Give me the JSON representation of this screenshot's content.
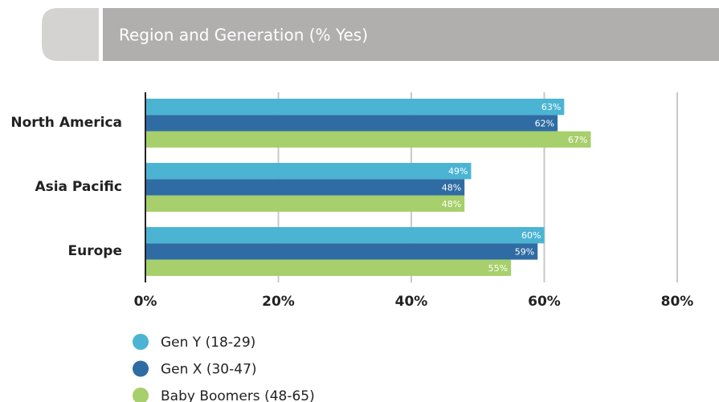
{
  "chart_data": {
    "type": "bar",
    "orientation": "horizontal",
    "title": "Region and Generation (% Yes)",
    "categories": [
      "North America",
      "Asia Pacific",
      "Europe"
    ],
    "series": [
      {
        "name": "Gen Y (18-29)",
        "color": "#4bb4d3",
        "values": [
          63,
          49,
          60
        ],
        "value_labels": [
          "63%",
          "49%",
          "60%"
        ]
      },
      {
        "name": "Gen X (30-47)",
        "color": "#2f6ca3",
        "values": [
          62,
          48,
          59
        ],
        "value_labels": [
          "62%",
          "48%",
          "59%"
        ]
      },
      {
        "name": "Baby Boomers (48-65)",
        "color": "#a7cf6b",
        "values": [
          67,
          48,
          55
        ],
        "value_labels": [
          "67%",
          "48%",
          "55%"
        ]
      }
    ],
    "xlim": [
      0,
      80
    ],
    "xticks": [
      {
        "value": 0,
        "label": "0%"
      },
      {
        "value": 20,
        "label": "20%"
      },
      {
        "value": 40,
        "label": "40%"
      },
      {
        "value": 60,
        "label": "60%"
      },
      {
        "value": 80,
        "label": "80%"
      }
    ],
    "grid": true,
    "legend": "bottom-left"
  }
}
